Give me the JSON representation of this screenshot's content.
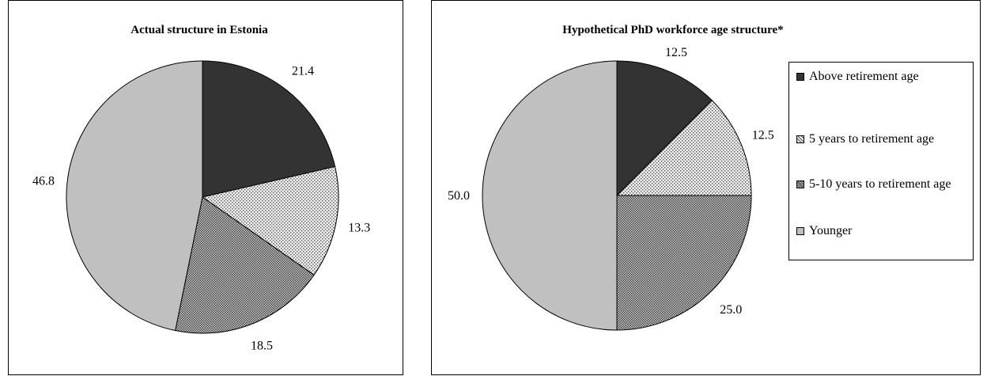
{
  "chart_data": [
    {
      "type": "pie",
      "title": "Actual structure in Estonia",
      "categories": [
        "Above retirement age",
        "5 years to retirement age",
        "5-10 years to retirement age",
        "Younger"
      ],
      "values": [
        21.4,
        13.3,
        18.5,
        46.8
      ],
      "labels": [
        "21.4",
        "13.3",
        "18.5",
        "46.8"
      ],
      "legend": false
    },
    {
      "type": "pie",
      "title": "Hypothetical PhD workforce age structure*",
      "categories": [
        "Above retirement age",
        "5 years to retirement age",
        "5-10 years to retirement age",
        "Younger"
      ],
      "values": [
        12.5,
        12.5,
        25.0,
        50.0
      ],
      "labels": [
        "12.5",
        "12.5",
        "25.0",
        "50.0"
      ],
      "legend": "right"
    }
  ],
  "legend": {
    "items": [
      {
        "label": "Above retirement age",
        "pattern": "solid-dark",
        "color": "#333333"
      },
      {
        "label": "5 years to retirement age",
        "pattern": "light-dots",
        "color": "#e0e0e0"
      },
      {
        "label": "5-10 years to retirement age",
        "pattern": "dense-hatch",
        "color": "#bdbdbd"
      },
      {
        "label": "Younger",
        "pattern": "solid-light",
        "color": "#c0c0c0"
      }
    ]
  }
}
